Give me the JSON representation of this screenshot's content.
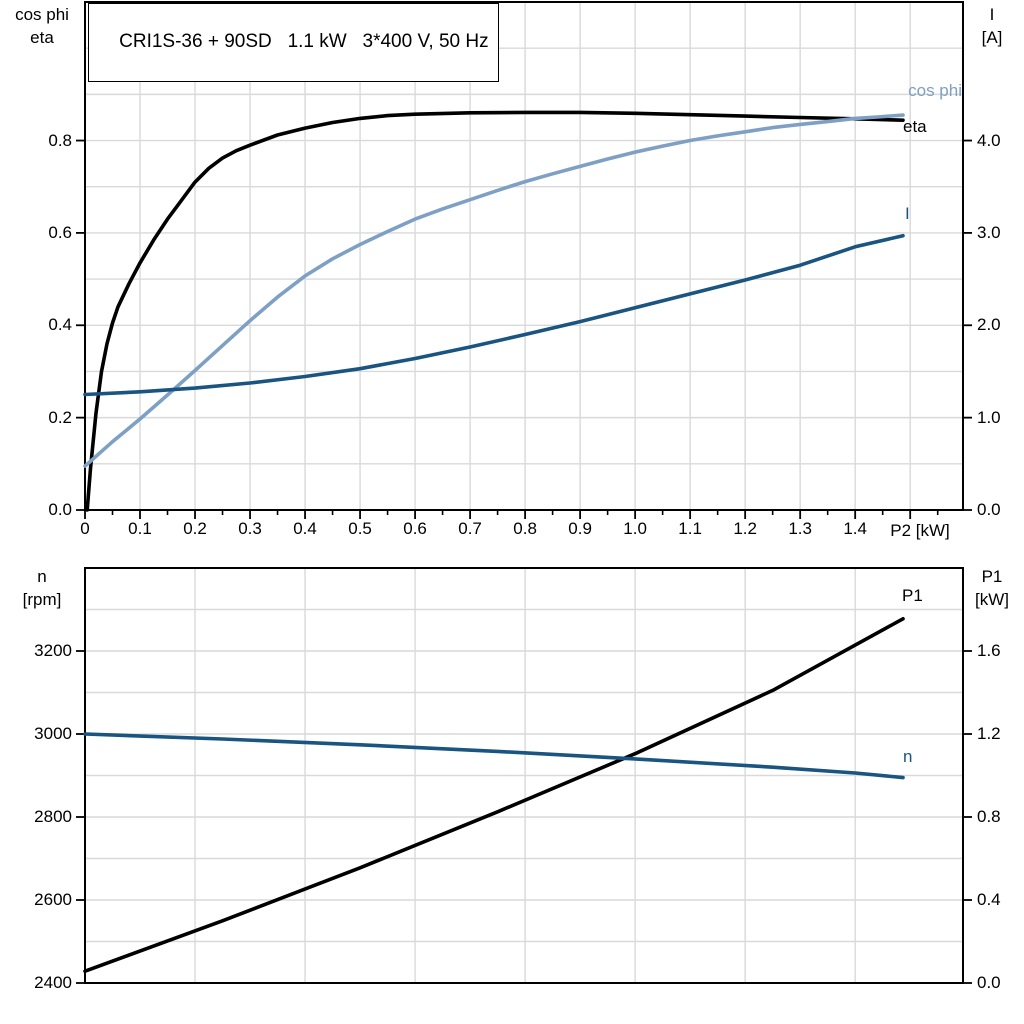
{
  "chart_data": [
    {
      "id": "top",
      "type": "line",
      "title": "CRI1S-36 + 90SD   1.1 kW   3*400 V, 50 Hz",
      "xlabel": "P2 [kW]",
      "left_axis_title": [
        "cos phi",
        "eta"
      ],
      "right_axis_title": [
        "I",
        "[A]"
      ],
      "xlim": [
        0,
        1.596
      ],
      "left_ylim": [
        0,
        1.1
      ],
      "right_ylim": [
        0,
        5.5
      ],
      "grid": {
        "x_step": 0.1,
        "y_step": 0.1
      },
      "xtick_major_step": 0.1,
      "xtick_minor_step": 0.05,
      "xticks": {
        "values": [
          0,
          0.1,
          0.2,
          0.3,
          0.4,
          0.5,
          0.6,
          0.7,
          0.8,
          0.9,
          1.0,
          1.1,
          1.2,
          1.3,
          1.4
        ],
        "labels": [
          "0",
          "0.1",
          "0.2",
          "0.3",
          "0.4",
          "0.5",
          "0.6",
          "0.7",
          "0.8",
          "0.9",
          "1.0",
          "1.1",
          "1.2",
          "1.3",
          "1.4"
        ]
      },
      "left_yticks": {
        "values": [
          0,
          0.2,
          0.4,
          0.6,
          0.8
        ],
        "labels": [
          "0.0",
          "0.2",
          "0.4",
          "0.6",
          "0.8"
        ]
      },
      "right_yticks": {
        "values": [
          0,
          1,
          2,
          3,
          4
        ],
        "labels": [
          "0.0",
          "1.0",
          "2.0",
          "3.0",
          "4.0"
        ]
      },
      "grid_color": "#d9d9d9",
      "frame_color": "#000000",
      "series": [
        {
          "name": "eta",
          "axis": "left",
          "color": "#000000",
          "points": [
            [
              0.004,
              0
            ],
            [
              0.01,
              0.09
            ],
            [
              0.02,
              0.21
            ],
            [
              0.03,
              0.3
            ],
            [
              0.04,
              0.36
            ],
            [
              0.05,
              0.405
            ],
            [
              0.06,
              0.44
            ],
            [
              0.08,
              0.49
            ],
            [
              0.1,
              0.535
            ],
            [
              0.125,
              0.585
            ],
            [
              0.15,
              0.63
            ],
            [
              0.175,
              0.67
            ],
            [
              0.2,
              0.71
            ],
            [
              0.225,
              0.74
            ],
            [
              0.25,
              0.762
            ],
            [
              0.275,
              0.778
            ],
            [
              0.3,
              0.79
            ],
            [
              0.35,
              0.812
            ],
            [
              0.4,
              0.827
            ],
            [
              0.45,
              0.839
            ],
            [
              0.5,
              0.848
            ],
            [
              0.55,
              0.854
            ],
            [
              0.6,
              0.857
            ],
            [
              0.7,
              0.86
            ],
            [
              0.8,
              0.861
            ],
            [
              0.9,
              0.861
            ],
            [
              1.0,
              0.859
            ],
            [
              1.1,
              0.856
            ],
            [
              1.2,
              0.853
            ],
            [
              1.3,
              0.85
            ],
            [
              1.4,
              0.847
            ],
            [
              1.487,
              0.844
            ]
          ]
        },
        {
          "name": "cos phi",
          "axis": "left",
          "color": "#7da0c4",
          "points": [
            [
              0,
              0.095
            ],
            [
              0.05,
              0.148
            ],
            [
              0.1,
              0.197
            ],
            [
              0.15,
              0.249
            ],
            [
              0.2,
              0.302
            ],
            [
              0.25,
              0.356
            ],
            [
              0.3,
              0.41
            ],
            [
              0.35,
              0.461
            ],
            [
              0.4,
              0.507
            ],
            [
              0.45,
              0.544
            ],
            [
              0.5,
              0.575
            ],
            [
              0.55,
              0.603
            ],
            [
              0.6,
              0.63
            ],
            [
              0.65,
              0.652
            ],
            [
              0.7,
              0.672
            ],
            [
              0.75,
              0.692
            ],
            [
              0.8,
              0.711
            ],
            [
              0.85,
              0.728
            ],
            [
              0.9,
              0.744
            ],
            [
              0.95,
              0.76
            ],
            [
              1.0,
              0.775
            ],
            [
              1.05,
              0.788
            ],
            [
              1.1,
              0.8
            ],
            [
              1.15,
              0.81
            ],
            [
              1.2,
              0.819
            ],
            [
              1.25,
              0.828
            ],
            [
              1.3,
              0.835
            ],
            [
              1.35,
              0.841
            ],
            [
              1.4,
              0.848
            ],
            [
              1.44,
              0.851
            ],
            [
              1.487,
              0.855
            ]
          ]
        },
        {
          "name": "I",
          "axis": "right",
          "color": "#1a5480",
          "points": [
            [
              0,
              1.25
            ],
            [
              0.1,
              1.28
            ],
            [
              0.2,
              1.32
            ],
            [
              0.3,
              1.375
            ],
            [
              0.4,
              1.445
            ],
            [
              0.5,
              1.53
            ],
            [
              0.6,
              1.64
            ],
            [
              0.7,
              1.765
            ],
            [
              0.8,
              1.9
            ],
            [
              0.9,
              2.04
            ],
            [
              1.0,
              2.19
            ],
            [
              1.1,
              2.34
            ],
            [
              1.2,
              2.49
            ],
            [
              1.3,
              2.65
            ],
            [
              1.4,
              2.85
            ],
            [
              1.487,
              2.97
            ]
          ]
        }
      ]
    },
    {
      "id": "bottom",
      "type": "line",
      "title": "",
      "xlabel": "",
      "left_axis_title": [
        "n",
        "[rpm]"
      ],
      "right_axis_title": [
        "P1",
        "[kW]"
      ],
      "xlim": [
        0,
        1.596
      ],
      "left_ylim": [
        2400,
        3400
      ],
      "right_ylim": [
        0,
        2.0
      ],
      "grid": {
        "x_step": 0.2,
        "y_step": 100
      },
      "left_yticks": {
        "values": [
          2400,
          2600,
          2800,
          3000,
          3200
        ],
        "labels": [
          "2400",
          "2600",
          "2800",
          "3000",
          "3200"
        ]
      },
      "right_yticks": {
        "values": [
          0,
          0.4,
          0.8,
          1.2,
          1.6
        ],
        "labels": [
          "0.0",
          "0.4",
          "0.8",
          "1.2",
          "1.6"
        ]
      },
      "grid_color": "#d9d9d9",
      "frame_color": "#000000",
      "series": [
        {
          "name": "P1",
          "axis": "right",
          "color": "#000000",
          "points": [
            [
              0,
              0.057
            ],
            [
              0.25,
              0.3
            ],
            [
              0.5,
              0.555
            ],
            [
              0.75,
              0.825
            ],
            [
              1.0,
              1.105
            ],
            [
              1.25,
              1.41
            ],
            [
              1.487,
              1.755
            ]
          ]
        },
        {
          "name": "n",
          "axis": "left",
          "color": "#1a5480",
          "points": [
            [
              0,
              3000
            ],
            [
              0.25,
              2988
            ],
            [
              0.5,
              2974
            ],
            [
              0.75,
              2958
            ],
            [
              1.0,
              2940
            ],
            [
              1.25,
              2920
            ],
            [
              1.4,
              2906
            ],
            [
              1.487,
              2895
            ]
          ]
        }
      ]
    }
  ]
}
